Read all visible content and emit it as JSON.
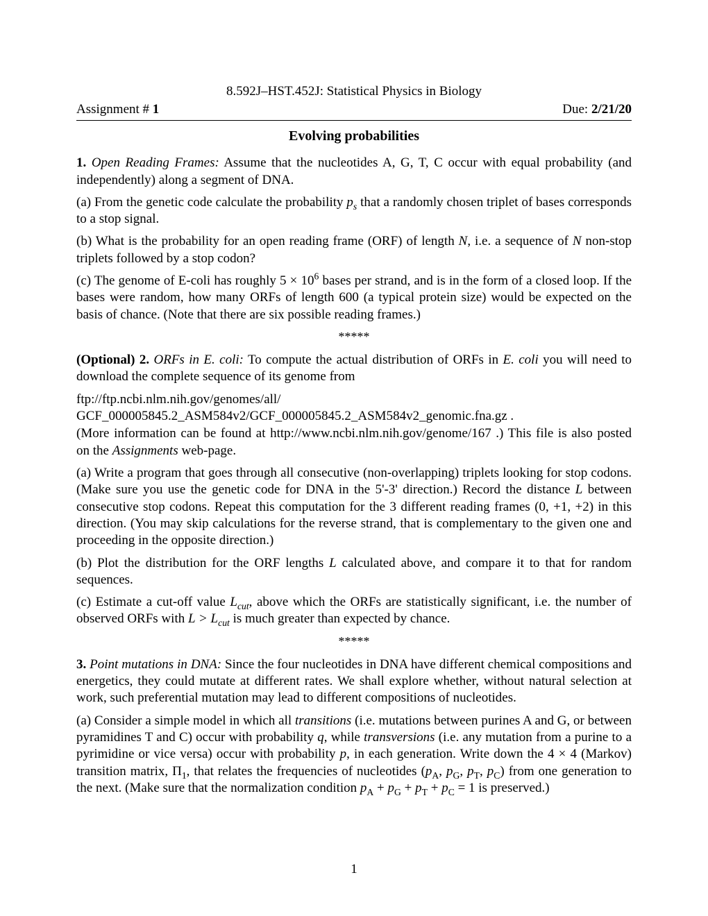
{
  "course_header": "8.592J–HST.452J: Statistical Physics in Biology",
  "header": {
    "left_prefix": "Assignment # ",
    "number": "1",
    "right_prefix": "Due: ",
    "due": "2/21/20"
  },
  "title": "Evolving probabilities",
  "p1": {
    "label": "1.",
    "name": "Open Reading Frames:",
    "intro": " Assume that the nucleotides A, G, T, C occur with equal probability (and independently) along a segment of DNA.",
    "a_label": "(a) ",
    "a_text1": "From the genetic code calculate the probability ",
    "a_sym": "p",
    "a_sub": "s",
    "a_text2": " that a randomly chosen triplet of bases corresponds to a stop signal.",
    "b_label": "(b) ",
    "b_text1": "What is the probability for an open reading frame (ORF) of length ",
    "b_N": "N",
    "b_text2": ", i.e. a sequence of ",
    "b_N2": "N",
    "b_text3": " non-stop triplets followed by a stop codon?",
    "c_label": "(c) ",
    "c_text1": "The genome of E-coli has roughly ",
    "c_num": "5 × 10",
    "c_exp": "6",
    "c_text2": " bases per strand, and is in the form of a closed loop. If the bases were random, how many ORFs of length 600 (a typical protein size) would be expected on the basis of chance. (Note that there are six possible reading frames.)"
  },
  "stars": "*****",
  "p2": {
    "label_pre": "(Optional) 2.",
    "name": "ORFs in E. coli:",
    "intro1": " To compute the actual distribution of ORFs in ",
    "intro_ital": "E. coli",
    "intro2": " you will need to download the complete sequence of its genome from",
    "url1": "ftp://ftp.ncbi.nlm.nih.gov/genomes/all/",
    "url2": "GCF_000005845.2_ASM584v2/GCF_000005845.2_ASM584v2_genomic.fna.gz .",
    "more1": "(More information can be found at http://www.ncbi.nlm.nih.gov/genome/167 .) This file is also posted on the ",
    "more_ital": "Assignments",
    "more2": " web-page.",
    "a_label": "(a) ",
    "a_text1": "Write a program that goes through all consecutive (non-overlapping) triplets looking for stop codons. (Make sure you use the genetic code for DNA in the 5'-3' direction.) Record the distance ",
    "a_L": "L",
    "a_text2": " between consecutive stop codons. Repeat this computation for the 3 different reading frames (0, +1, +2) in this direction. (You may skip calculations for the reverse strand, that is complementary to the given one and proceeding in the opposite direction.)",
    "b_label": "(b) ",
    "b_text1": "Plot the distribution for the ORF lengths ",
    "b_L": "L",
    "b_text2": " calculated above, and compare it to that for random sequences.",
    "c_label": "(c) ",
    "c_text1": "Estimate a cut-off value ",
    "c_L": "L",
    "c_sub": "cut",
    "c_text2": ", above which the ORFs are statistically significant, i.e. the number of observed ORFs with ",
    "c_L2": "L",
    "c_gt": " > ",
    "c_L3": "L",
    "c_sub2": "cut",
    "c_text3": " is much greater than expected by chance."
  },
  "p3": {
    "label": "3.",
    "name": "Point mutations in DNA:",
    "intro": " Since the four nucleotides in DNA have different chemical compositions and energetics, they could mutate at different rates. We shall explore whether, without natural selection at work, such preferential mutation may lead to different compositions of nucleotides.",
    "a_label": "(a) ",
    "a_text1": "Consider a simple model in which all ",
    "a_ital1": "transitions",
    "a_text2": " (i.e. mutations between purines A and G, or between pyramidines T and C) occur with probability ",
    "a_q": "q",
    "a_text3": ", while ",
    "a_ital2": "transversions",
    "a_text4": " (i.e. any mutation from a purine to a pyrimidine or vice versa) occur with probability ",
    "a_p": "p",
    "a_text5": ", in each generation. Write down the 4 × 4 (Markov) transition matrix, Π",
    "a_sub1": "1",
    "a_text6": ", that relates the frequencies of nucleotides (",
    "a_pA": "p",
    "a_subA": "A",
    "a_comma1": ", ",
    "a_pG": "p",
    "a_subG": "G",
    "a_comma2": ", ",
    "a_pT": "p",
    "a_subT": "T",
    "a_comma3": ", ",
    "a_pC": "p",
    "a_subC": "C",
    "a_text7": ") from one generation to the next. (Make sure that the normalization condition ",
    "a_nA": "p",
    "a_nsA": "A",
    "a_plus1": " + ",
    "a_nG": "p",
    "a_nsG": "G",
    "a_plus2": " + ",
    "a_nT": "p",
    "a_nsT": "T",
    "a_plus3": " + ",
    "a_nC": "p",
    "a_nsC": "C",
    "a_eq": " = 1 is preserved.)"
  },
  "page_number": "1"
}
